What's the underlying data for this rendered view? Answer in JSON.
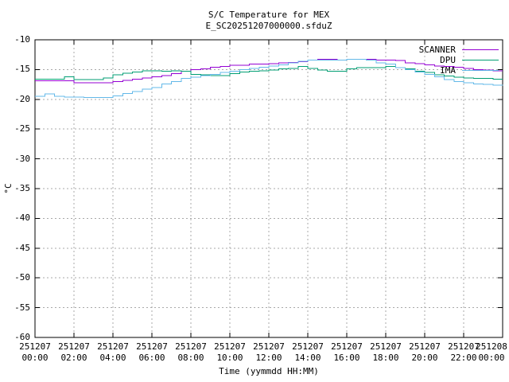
{
  "canvas": {
    "background": "#ffffff",
    "text_color": "#000000",
    "grid_color": "#a8a8a8"
  },
  "chart_data": {
    "type": "line",
    "title": "S/C Temperature for MEX",
    "subtitle": "E_SC20251207000000.sfduZ",
    "xlabel": "Time (yymmdd HH:MM)",
    "ylabel": "°C",
    "ylim": [
      -60,
      -10
    ],
    "y_ticks": [
      -10,
      -15,
      -20,
      -25,
      -30,
      -35,
      -40,
      -45,
      -50,
      -55,
      -60
    ],
    "x_range_hours": [
      0,
      24
    ],
    "x_tick_interval_hours": 2,
    "x_ticks": [
      {
        "date": "251207",
        "time": "00:00"
      },
      {
        "date": "251207",
        "time": "02:00"
      },
      {
        "date": "251207",
        "time": "04:00"
      },
      {
        "date": "251207",
        "time": "06:00"
      },
      {
        "date": "251207",
        "time": "08:00"
      },
      {
        "date": "251207",
        "time": "10:00"
      },
      {
        "date": "251207",
        "time": "12:00"
      },
      {
        "date": "251207",
        "time": "14:00"
      },
      {
        "date": "251207",
        "time": "16:00"
      },
      {
        "date": "251207",
        "time": "18:00"
      },
      {
        "date": "251207",
        "time": "20:00"
      },
      {
        "date": "251207",
        "time": "22:00"
      },
      {
        "date": "251208",
        "time": "00:00"
      }
    ],
    "grid": true,
    "legend_position": "top-right-inside",
    "line_style": "steps",
    "x_hours": [
      0,
      0.5,
      1,
      1.5,
      2,
      2.5,
      3,
      3.5,
      4,
      4.5,
      5,
      5.5,
      6,
      6.5,
      7,
      7.5,
      8,
      8.5,
      9,
      9.5,
      10,
      10.5,
      11,
      11.5,
      12,
      12.5,
      13,
      13.5,
      14,
      14.5,
      15,
      15.5,
      16,
      16.5,
      17,
      17.5,
      18,
      18.5,
      19,
      19.5,
      20,
      20.5,
      21,
      21.5,
      22,
      22.5,
      23,
      23.5,
      24
    ],
    "series": [
      {
        "name": "SCANNER",
        "color": "#9400d3",
        "values": [
          -16.9,
          -16.9,
          -16.9,
          -16.9,
          -17.2,
          -17.2,
          -17.2,
          -17.2,
          -17.0,
          -16.8,
          -16.6,
          -16.4,
          -16.2,
          -16.0,
          -15.7,
          -15.3,
          -15.0,
          -14.9,
          -14.6,
          -14.5,
          -14.3,
          -14.3,
          -14.1,
          -14.1,
          -14.0,
          -13.9,
          -13.8,
          -13.7,
          -13.4,
          -13.3,
          -13.3,
          -13.4,
          -13.3,
          -13.3,
          -13.3,
          -13.4,
          -13.4,
          -13.5,
          -13.9,
          -14.0,
          -14.2,
          -14.4,
          -14.5,
          -14.6,
          -14.8,
          -15.0,
          -15.1,
          -15.2,
          -15.2
        ]
      },
      {
        "name": "DPU",
        "color": "#009e73",
        "values": [
          -16.6,
          -16.6,
          -16.6,
          -16.2,
          -16.7,
          -16.7,
          -16.7,
          -16.4,
          -15.9,
          -15.6,
          -15.4,
          -15.2,
          -15.2,
          -15.3,
          -15.2,
          -15.3,
          -15.8,
          -15.9,
          -16.0,
          -16.0,
          -15.7,
          -15.4,
          -15.3,
          -15.2,
          -15.1,
          -14.9,
          -14.8,
          -14.5,
          -14.8,
          -15.1,
          -15.3,
          -15.3,
          -14.9,
          -14.7,
          -14.7,
          -14.7,
          -14.5,
          -14.7,
          -14.9,
          -15.3,
          -15.5,
          -15.9,
          -16.1,
          -16.3,
          -16.4,
          -16.5,
          -16.5,
          -16.6,
          -16.6
        ]
      },
      {
        "name": "IMA",
        "color": "#63b8e8",
        "values": [
          -19.5,
          -19.1,
          -19.5,
          -19.6,
          -19.6,
          -19.7,
          -19.7,
          -19.7,
          -19.4,
          -19.0,
          -18.7,
          -18.3,
          -18.0,
          -17.4,
          -17.0,
          -16.5,
          -16.3,
          -16.0,
          -15.8,
          -15.5,
          -15.3,
          -15.0,
          -14.8,
          -14.6,
          -14.4,
          -14.2,
          -13.9,
          -13.6,
          -13.4,
          -13.4,
          -13.4,
          -13.4,
          -13.3,
          -13.3,
          -13.4,
          -13.9,
          -14.1,
          -14.7,
          -15.0,
          -15.4,
          -15.8,
          -16.2,
          -16.7,
          -17.0,
          -17.2,
          -17.4,
          -17.5,
          -17.6,
          -17.7
        ]
      }
    ]
  }
}
